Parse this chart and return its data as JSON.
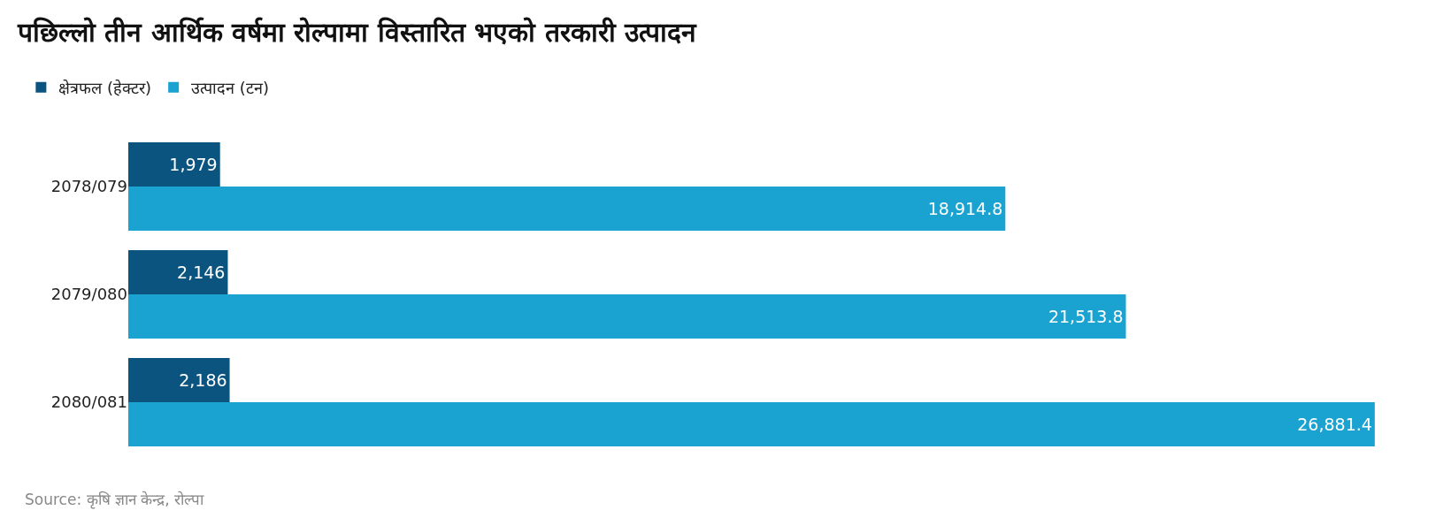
{
  "chart_data": {
    "type": "bar",
    "orientation": "horizontal",
    "title": "पछिल्लो तीन आर्थिक वर्षमा रोल्पामा विस्तारित भएको तरकारी उत्पादन",
    "categories": [
      "2078/079",
      "2079/080",
      "2080/081"
    ],
    "series": [
      {
        "name": "क्षेत्रफल (हेक्टर)",
        "color": "#0b5480",
        "values": [
          1979,
          2146,
          2186
        ],
        "value_labels": [
          "1,979",
          "2,146",
          "2,186"
        ]
      },
      {
        "name": "उत्पादन (टन)",
        "color": "#1aa2d0",
        "values": [
          18914.8,
          21513.8,
          26881.4
        ],
        "value_labels": [
          "18,914.8",
          "21,513.8",
          "26,881.4"
        ]
      }
    ],
    "legend": "top left",
    "annotations": [
      "Source: कृषि ज्ञान केन्द्र, रोल्पा"
    ]
  }
}
